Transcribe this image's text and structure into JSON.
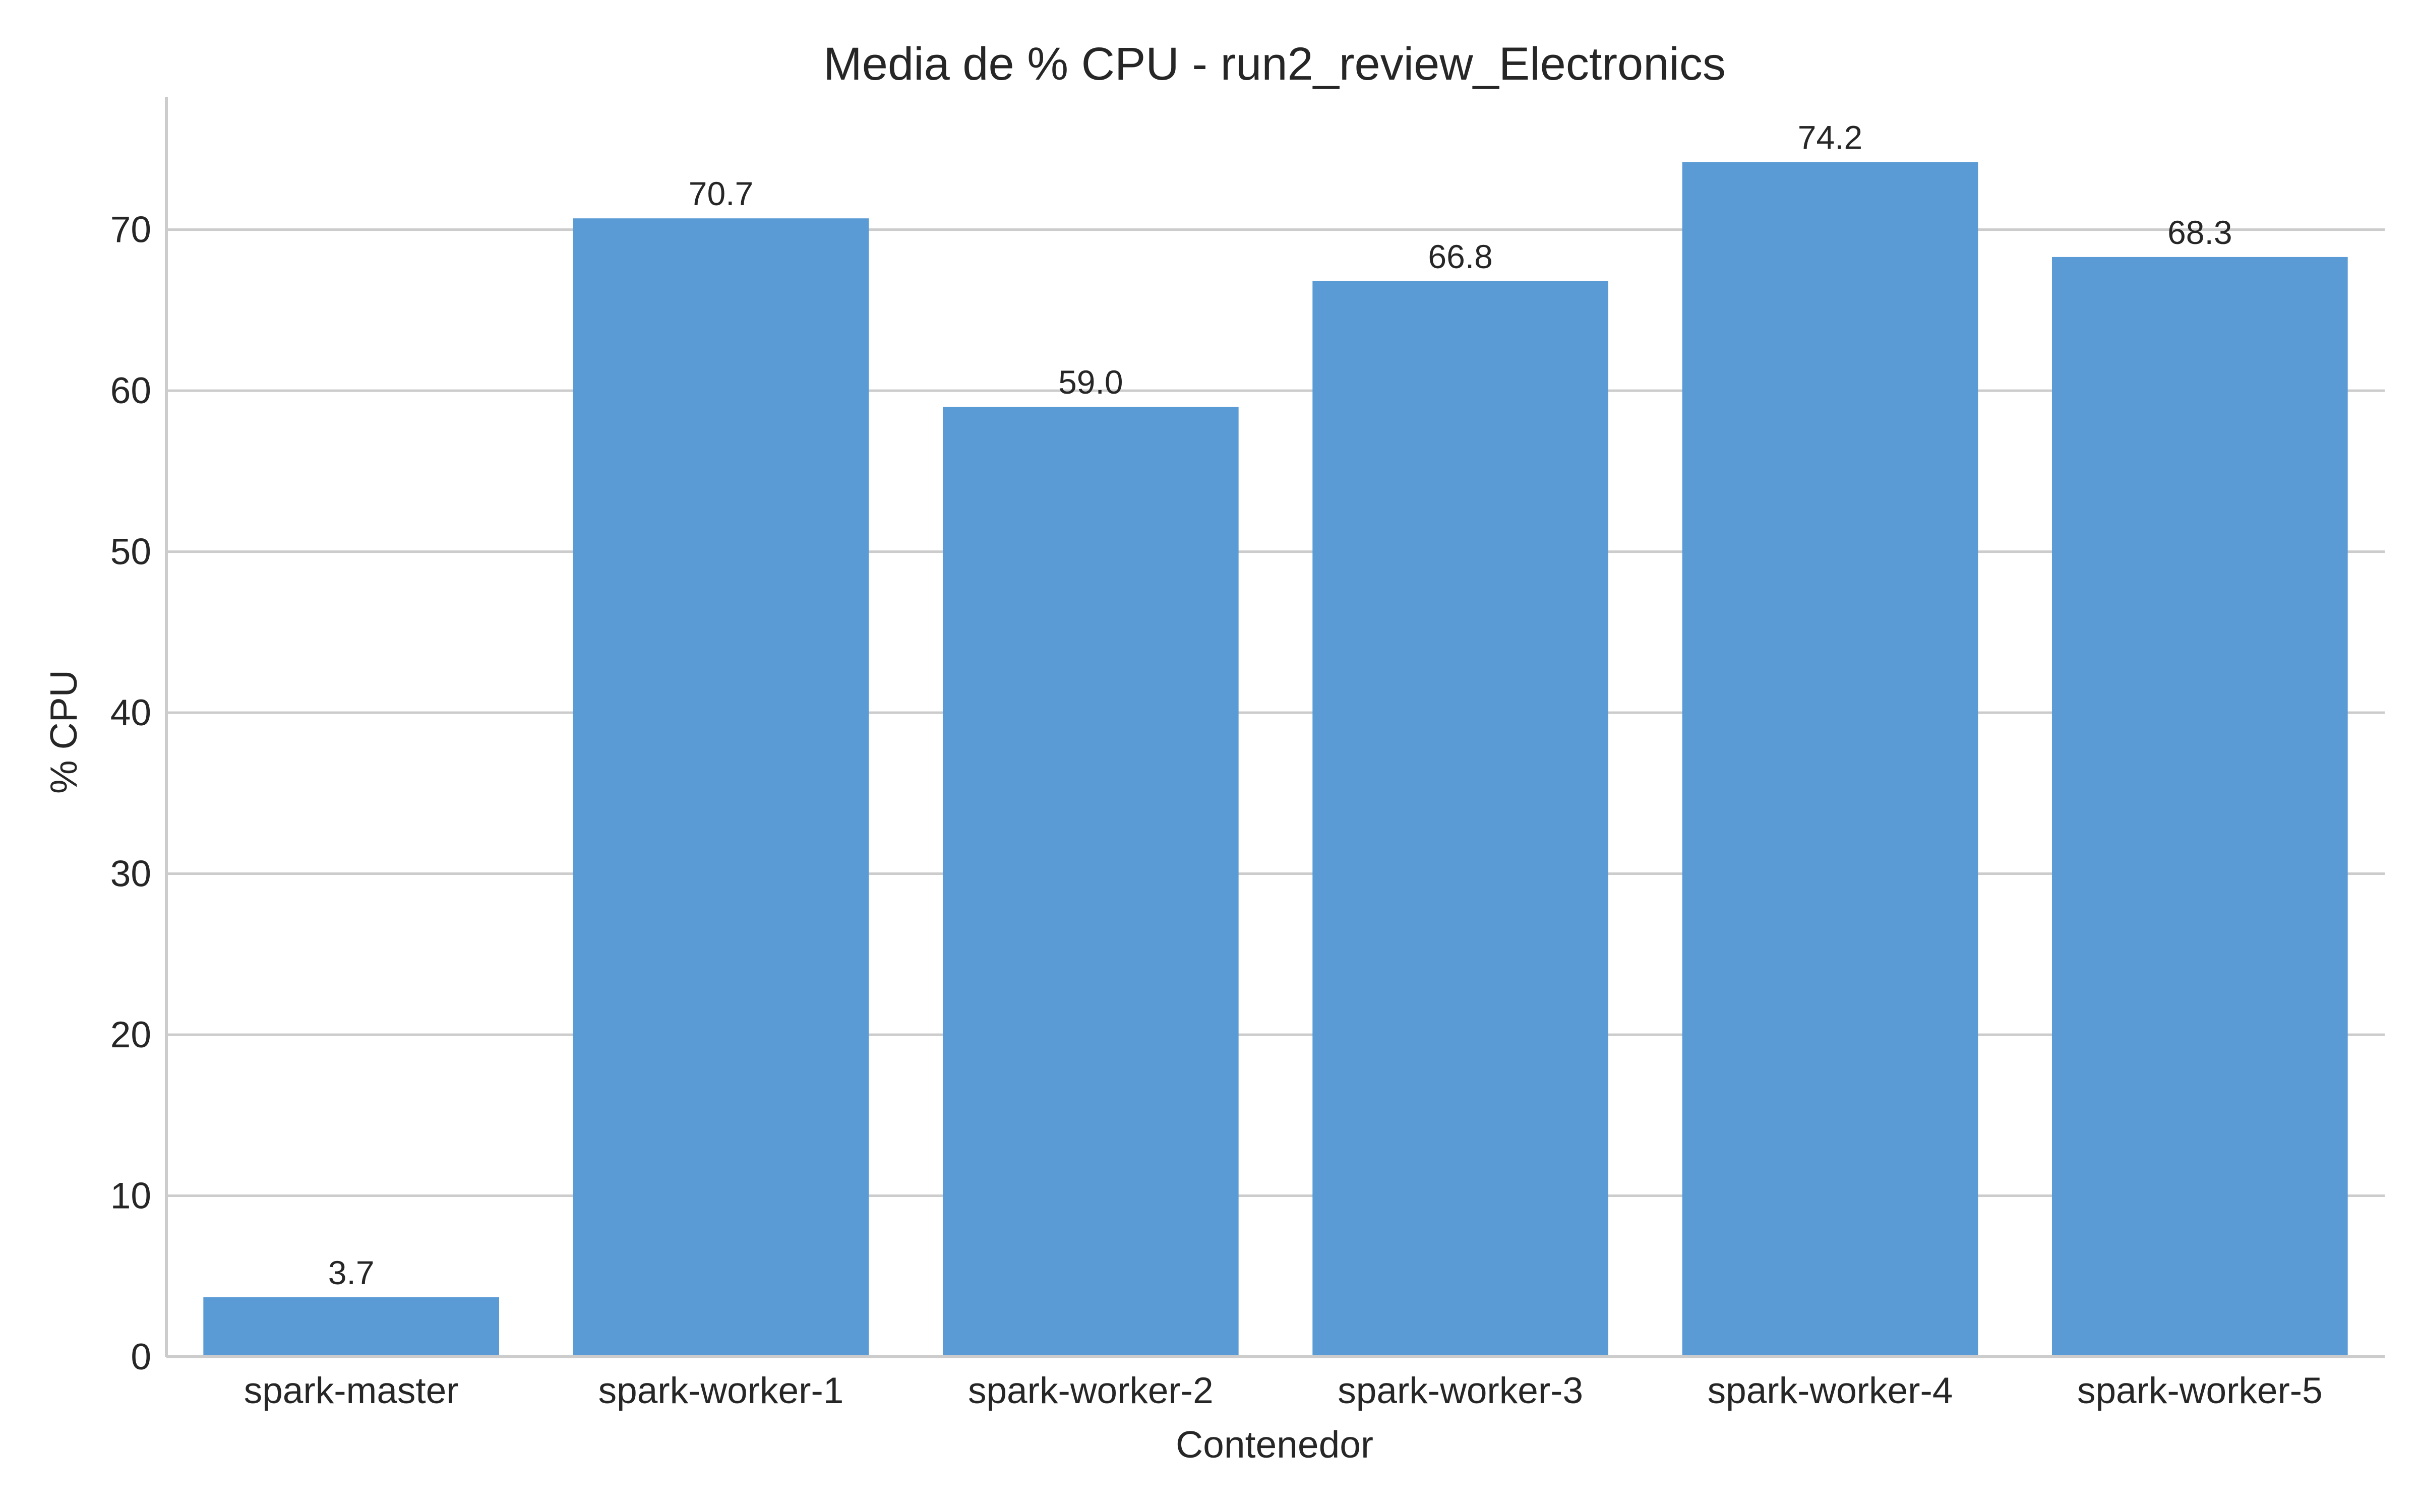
{
  "chart_data": {
    "type": "bar",
    "title": "Media de % CPU - run2_review_Electronics",
    "xlabel": "Contenedor",
    "ylabel": "% CPU",
    "categories": [
      "spark-master",
      "spark-worker-1",
      "spark-worker-2",
      "spark-worker-3",
      "spark-worker-4",
      "spark-worker-5"
    ],
    "values": [
      3.7,
      70.7,
      59.0,
      66.8,
      74.2,
      68.3
    ],
    "data_labels": [
      "3.7",
      "70.7",
      "59.0",
      "66.8",
      "74.2",
      "68.3"
    ],
    "yticks": [
      0,
      10,
      20,
      30,
      40,
      50,
      60,
      70
    ],
    "ytick_labels": [
      "0",
      "10",
      "20",
      "30",
      "40",
      "50",
      "60",
      "70"
    ],
    "ylim": [
      0,
      78
    ],
    "grid": "horizontal",
    "colors": {
      "bar": "#5b9bd5",
      "grid": "#cccccc",
      "text": "#262626"
    }
  }
}
